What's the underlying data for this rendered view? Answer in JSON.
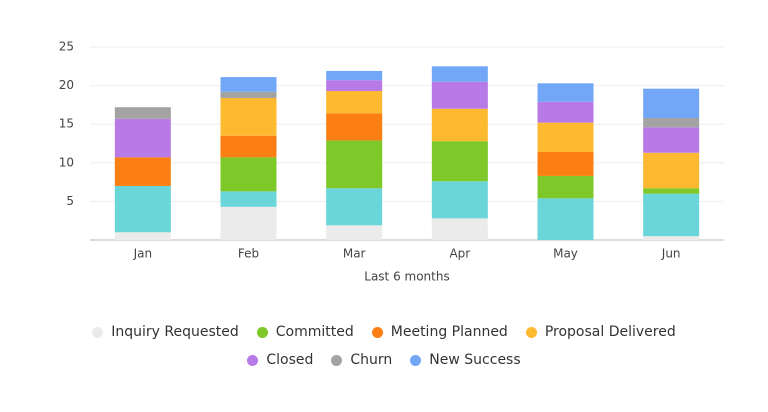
{
  "chart_data": {
    "type": "stacked_bar",
    "x_label": "Last 6 months",
    "categories": [
      "Jan",
      "Feb",
      "Mar",
      "Apr",
      "May",
      "Jun"
    ],
    "ylim": [
      0,
      25
    ],
    "yticks": [
      5,
      10,
      15,
      20,
      25
    ],
    "grid": true,
    "series": [
      {
        "name": "Inquiry Requested",
        "color": "#ebebeb",
        "values": [
          1.0,
          4.3,
          1.9,
          2.8,
          0,
          0.5
        ]
      },
      {
        "color": "#6ad6d9",
        "values": [
          6.0,
          2.0,
          4.8,
          4.8,
          5.4,
          5.5
        ]
      },
      {
        "name": "Committed",
        "color": "#7ec82a",
        "values": [
          0,
          4.4,
          6.2,
          5.2,
          2.9,
          0.7
        ]
      },
      {
        "name": "Meeting Planned",
        "color": "#fb7f13",
        "values": [
          3.7,
          2.8,
          3.5,
          0,
          3.1,
          0
        ]
      },
      {
        "name": "Proposal Delivered",
        "color": "#fdb92f",
        "values": [
          0,
          4.9,
          2.9,
          4.2,
          3.8,
          4.6
        ]
      },
      {
        "name": "Closed",
        "color": "#b77ae6",
        "values": [
          5.0,
          0,
          1.4,
          3.5,
          2.7,
          3.3
        ]
      },
      {
        "name": "Churn",
        "color": "#a3a3a3",
        "values": [
          1.5,
          0.8,
          0,
          0,
          0,
          1.2
        ]
      },
      {
        "name": "New Success",
        "color": "#72a7f7",
        "values": [
          0,
          1.9,
          1.2,
          2.0,
          2.4,
          3.8
        ]
      }
    ]
  }
}
